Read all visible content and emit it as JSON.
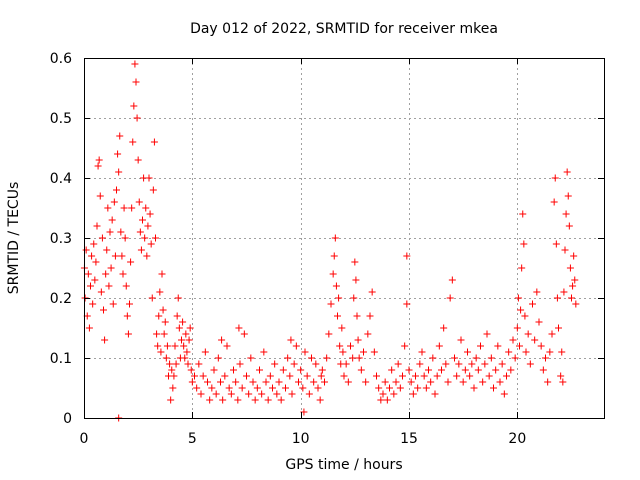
{
  "chart_data": {
    "type": "scatter",
    "title": "Day 012 of 2022, SRMTID for receiver mkea",
    "xlabel": "GPS time / hours",
    "ylabel": "SRMTID / TECUs",
    "xlim": [
      0,
      24
    ],
    "ylim": [
      0,
      0.6
    ],
    "xticks": [
      0,
      5,
      10,
      15,
      20
    ],
    "xtick_labels": [
      "0",
      "5",
      "10",
      "15",
      "20"
    ],
    "yticks": [
      0,
      0.1,
      0.2,
      0.3,
      0.4,
      0.5,
      0.6
    ],
    "ytick_labels": [
      "0",
      "0.1",
      "0.2",
      "0.3",
      "0.4",
      "0.5",
      "0.6"
    ],
    "grid": true,
    "marker": "+",
    "color": "#ff0000",
    "series": [
      {
        "name": "mkea",
        "points": [
          [
            0.02,
            0.25
          ],
          [
            0.05,
            0.2
          ],
          [
            0.1,
            0.28
          ],
          [
            0.15,
            0.17
          ],
          [
            0.2,
            0.24
          ],
          [
            0.25,
            0.15
          ],
          [
            0.3,
            0.22
          ],
          [
            0.35,
            0.27
          ],
          [
            0.4,
            0.19
          ],
          [
            0.45,
            0.29
          ],
          [
            0.5,
            0.23
          ],
          [
            0.55,
            0.26
          ],
          [
            0.6,
            0.32
          ],
          [
            0.65,
            0.42
          ],
          [
            0.7,
            0.43
          ],
          [
            0.75,
            0.37
          ],
          [
            0.8,
            0.21
          ],
          [
            0.85,
            0.3
          ],
          [
            0.9,
            0.18
          ],
          [
            0.95,
            0.13
          ],
          [
            1.0,
            0.24
          ],
          [
            1.05,
            0.28
          ],
          [
            1.1,
            0.35
          ],
          [
            1.15,
            0.22
          ],
          [
            1.2,
            0.31
          ],
          [
            1.25,
            0.25
          ],
          [
            1.3,
            0.33
          ],
          [
            1.35,
            0.19
          ],
          [
            1.4,
            0.36
          ],
          [
            1.45,
            0.27
          ],
          [
            1.5,
            0.38
          ],
          [
            1.55,
            0.44
          ],
          [
            1.6,
            0.41
          ],
          [
            1.65,
            0.47
          ],
          [
            1.7,
            0.31
          ],
          [
            1.75,
            0.27
          ],
          [
            1.8,
            0.24
          ],
          [
            1.85,
            0.35
          ],
          [
            1.9,
            0.3
          ],
          [
            1.95,
            0.22
          ],
          [
            2.0,
            0.17
          ],
          [
            2.05,
            0.14
          ],
          [
            2.1,
            0.19
          ],
          [
            2.15,
            0.26
          ],
          [
            2.2,
            0.35
          ],
          [
            2.25,
            0.46
          ],
          [
            2.3,
            0.52
          ],
          [
            2.35,
            0.59
          ],
          [
            2.4,
            0.56
          ],
          [
            2.45,
            0.5
          ],
          [
            2.5,
            0.43
          ],
          [
            2.55,
            0.36
          ],
          [
            2.6,
            0.31
          ],
          [
            2.65,
            0.28
          ],
          [
            2.7,
            0.33
          ],
          [
            2.75,
            0.4
          ],
          [
            2.8,
            0.3
          ],
          [
            2.85,
            0.35
          ],
          [
            2.9,
            0.27
          ],
          [
            2.95,
            0.32
          ],
          [
            3.0,
            0.4
          ],
          [
            3.05,
            0.34
          ],
          [
            3.1,
            0.29
          ],
          [
            3.15,
            0.2
          ],
          [
            3.2,
            0.38
          ],
          [
            3.25,
            0.46
          ],
          [
            3.3,
            0.3
          ],
          [
            3.35,
            0.14
          ],
          [
            3.4,
            0.12
          ],
          [
            3.45,
            0.17
          ],
          [
            3.5,
            0.21
          ],
          [
            3.55,
            0.11
          ],
          [
            3.6,
            0.24
          ],
          [
            3.65,
            0.18
          ],
          [
            3.7,
            0.14
          ],
          [
            3.75,
            0.16
          ],
          [
            3.8,
            0.1
          ],
          [
            3.85,
            0.12
          ],
          [
            3.9,
            0.07
          ],
          [
            3.95,
            0.09
          ],
          [
            4.0,
            0.03
          ],
          [
            4.05,
            0.08
          ],
          [
            4.1,
            0.05
          ],
          [
            4.15,
            0.07
          ],
          [
            4.2,
            0.12
          ],
          [
            4.25,
            0.09
          ],
          [
            4.3,
            0.17
          ],
          [
            4.35,
            0.2
          ],
          [
            4.4,
            0.15
          ],
          [
            4.45,
            0.1
          ],
          [
            4.5,
            0.13
          ],
          [
            4.55,
            0.16
          ],
          [
            4.6,
            0.12
          ],
          [
            4.65,
            0.1
          ],
          [
            4.7,
            0.14
          ],
          [
            4.75,
            0.11
          ],
          [
            4.8,
            0.09
          ],
          [
            4.85,
            0.13
          ],
          [
            4.9,
            0.15
          ],
          [
            4.95,
            0.08
          ],
          [
            1.6,
            0.0
          ],
          [
            5.0,
            0.06
          ],
          [
            5.1,
            0.07
          ],
          [
            5.2,
            0.05
          ],
          [
            5.3,
            0.09
          ],
          [
            5.4,
            0.04
          ],
          [
            5.5,
            0.07
          ],
          [
            5.6,
            0.11
          ],
          [
            5.7,
            0.06
          ],
          [
            5.8,
            0.03
          ],
          [
            5.9,
            0.05
          ],
          [
            6.0,
            0.08
          ],
          [
            6.1,
            0.04
          ],
          [
            6.2,
            0.1
          ],
          [
            6.3,
            0.06
          ],
          [
            6.4,
            0.03
          ],
          [
            6.5,
            0.07
          ],
          [
            6.6,
            0.12
          ],
          [
            6.7,
            0.05
          ],
          [
            6.8,
            0.04
          ],
          [
            6.9,
            0.08
          ],
          [
            7.0,
            0.06
          ],
          [
            7.1,
            0.03
          ],
          [
            7.2,
            0.09
          ],
          [
            7.3,
            0.05
          ],
          [
            7.4,
            0.14
          ],
          [
            7.5,
            0.07
          ],
          [
            7.6,
            0.04
          ],
          [
            7.7,
            0.1
          ],
          [
            7.8,
            0.06
          ],
          [
            7.9,
            0.03
          ],
          [
            8.0,
            0.05
          ],
          [
            8.1,
            0.08
          ],
          [
            8.2,
            0.04
          ],
          [
            8.3,
            0.11
          ],
          [
            8.4,
            0.06
          ],
          [
            8.5,
            0.03
          ],
          [
            8.6,
            0.07
          ],
          [
            8.7,
            0.05
          ],
          [
            8.8,
            0.09
          ],
          [
            8.9,
            0.04
          ],
          [
            9.0,
            0.06
          ],
          [
            9.1,
            0.03
          ],
          [
            9.2,
            0.08
          ],
          [
            9.3,
            0.05
          ],
          [
            9.4,
            0.1
          ],
          [
            9.5,
            0.07
          ],
          [
            9.6,
            0.04
          ],
          [
            9.7,
            0.09
          ],
          [
            9.8,
            0.12
          ],
          [
            9.9,
            0.06
          ],
          [
            10.0,
            0.08
          ],
          [
            10.1,
            0.05
          ],
          [
            10.2,
            0.11
          ],
          [
            10.3,
            0.07
          ],
          [
            10.4,
            0.04
          ],
          [
            10.5,
            0.1
          ],
          [
            10.6,
            0.06
          ],
          [
            10.7,
            0.09
          ],
          [
            10.8,
            0.05
          ],
          [
            10.9,
            0.03
          ],
          [
            10.95,
            0.07
          ],
          [
            10.15,
            0.01
          ],
          [
            9.55,
            0.13
          ],
          [
            6.35,
            0.13
          ],
          [
            7.15,
            0.15
          ],
          [
            11.0,
            0.08
          ],
          [
            11.1,
            0.06
          ],
          [
            11.2,
            0.1
          ],
          [
            11.3,
            0.14
          ],
          [
            11.4,
            0.19
          ],
          [
            11.5,
            0.24
          ],
          [
            11.55,
            0.27
          ],
          [
            11.6,
            0.3
          ],
          [
            11.65,
            0.22
          ],
          [
            11.7,
            0.17
          ],
          [
            11.75,
            0.2
          ],
          [
            11.8,
            0.12
          ],
          [
            11.85,
            0.09
          ],
          [
            11.9,
            0.15
          ],
          [
            11.95,
            0.11
          ],
          [
            12.0,
            0.07
          ],
          [
            12.1,
            0.09
          ],
          [
            12.2,
            0.06
          ],
          [
            12.3,
            0.12
          ],
          [
            12.4,
            0.1
          ],
          [
            12.45,
            0.2
          ],
          [
            12.5,
            0.26
          ],
          [
            12.55,
            0.23
          ],
          [
            12.6,
            0.17
          ],
          [
            12.65,
            0.13
          ],
          [
            12.7,
            0.1
          ],
          [
            12.8,
            0.08
          ],
          [
            12.9,
            0.11
          ],
          [
            13.0,
            0.06
          ],
          [
            13.1,
            0.14
          ],
          [
            13.2,
            0.17
          ],
          [
            13.3,
            0.21
          ],
          [
            13.4,
            0.11
          ],
          [
            13.5,
            0.07
          ],
          [
            13.6,
            0.05
          ],
          [
            13.7,
            0.03
          ],
          [
            13.8,
            0.04
          ],
          [
            13.9,
            0.06
          ],
          [
            14.0,
            0.03
          ],
          [
            14.1,
            0.05
          ],
          [
            14.2,
            0.08
          ],
          [
            14.3,
            0.04
          ],
          [
            14.4,
            0.06
          ],
          [
            14.5,
            0.09
          ],
          [
            14.6,
            0.05
          ],
          [
            14.7,
            0.07
          ],
          [
            14.8,
            0.12
          ],
          [
            14.9,
            0.19
          ],
          [
            14.9,
            0.27
          ],
          [
            15.0,
            0.08
          ],
          [
            15.1,
            0.06
          ],
          [
            15.2,
            0.04
          ],
          [
            15.3,
            0.07
          ],
          [
            15.4,
            0.05
          ],
          [
            15.5,
            0.09
          ],
          [
            15.6,
            0.11
          ],
          [
            15.7,
            0.07
          ],
          [
            15.8,
            0.05
          ],
          [
            15.9,
            0.08
          ],
          [
            16.0,
            0.06
          ],
          [
            16.1,
            0.1
          ],
          [
            16.2,
            0.04
          ],
          [
            16.3,
            0.07
          ],
          [
            16.4,
            0.12
          ],
          [
            16.5,
            0.08
          ],
          [
            16.6,
            0.15
          ],
          [
            16.7,
            0.09
          ],
          [
            16.8,
            0.06
          ],
          [
            16.9,
            0.2
          ],
          [
            17.0,
            0.23
          ],
          [
            17.1,
            0.1
          ],
          [
            17.2,
            0.07
          ],
          [
            17.3,
            0.09
          ],
          [
            17.4,
            0.13
          ],
          [
            17.5,
            0.06
          ],
          [
            17.6,
            0.08
          ],
          [
            17.7,
            0.11
          ],
          [
            17.8,
            0.07
          ],
          [
            17.9,
            0.09
          ],
          [
            18.0,
            0.05
          ],
          [
            18.1,
            0.1
          ],
          [
            18.2,
            0.08
          ],
          [
            18.3,
            0.12
          ],
          [
            18.4,
            0.06
          ],
          [
            18.5,
            0.09
          ],
          [
            18.6,
            0.14
          ],
          [
            18.7,
            0.07
          ],
          [
            18.8,
            0.1
          ],
          [
            18.9,
            0.05
          ],
          [
            19.0,
            0.08
          ],
          [
            19.1,
            0.12
          ],
          [
            19.2,
            0.06
          ],
          [
            19.3,
            0.09
          ],
          [
            19.4,
            0.04
          ],
          [
            19.5,
            0.07
          ],
          [
            19.6,
            0.11
          ],
          [
            19.7,
            0.08
          ],
          [
            19.8,
            0.13
          ],
          [
            19.9,
            0.1
          ],
          [
            20.0,
            0.15
          ],
          [
            20.05,
            0.2
          ],
          [
            20.1,
            0.12
          ],
          [
            20.15,
            0.18
          ],
          [
            20.2,
            0.25
          ],
          [
            20.25,
            0.34
          ],
          [
            20.3,
            0.29
          ],
          [
            20.35,
            0.17
          ],
          [
            20.4,
            0.11
          ],
          [
            20.5,
            0.14
          ],
          [
            20.6,
            0.09
          ],
          [
            20.7,
            0.19
          ],
          [
            20.8,
            0.13
          ],
          [
            20.9,
            0.21
          ],
          [
            21.0,
            0.16
          ],
          [
            21.1,
            0.12
          ],
          [
            21.2,
            0.08
          ],
          [
            21.3,
            0.1
          ],
          [
            21.4,
            0.06
          ],
          [
            21.5,
            0.11
          ],
          [
            21.6,
            0.14
          ],
          [
            21.7,
            0.36
          ],
          [
            21.75,
            0.4
          ],
          [
            21.8,
            0.29
          ],
          [
            21.85,
            0.2
          ],
          [
            21.9,
            0.15
          ],
          [
            22.0,
            0.07
          ],
          [
            22.05,
            0.11
          ],
          [
            22.1,
            0.06
          ],
          [
            22.15,
            0.21
          ],
          [
            22.2,
            0.28
          ],
          [
            22.25,
            0.34
          ],
          [
            22.3,
            0.41
          ],
          [
            22.35,
            0.37
          ],
          [
            22.4,
            0.32
          ],
          [
            22.45,
            0.25
          ],
          [
            22.5,
            0.2
          ],
          [
            22.55,
            0.22
          ],
          [
            22.6,
            0.27
          ],
          [
            22.65,
            0.23
          ],
          [
            22.7,
            0.19
          ]
        ]
      }
    ]
  }
}
